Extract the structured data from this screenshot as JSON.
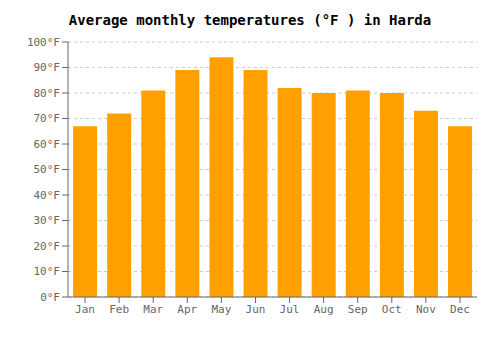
{
  "chart_data": {
    "type": "bar",
    "title": "Average monthly temperatures (°F ) in Harda",
    "categories": [
      "Jan",
      "Feb",
      "Mar",
      "Apr",
      "May",
      "Jun",
      "Jul",
      "Aug",
      "Sep",
      "Oct",
      "Nov",
      "Dec"
    ],
    "values": [
      67,
      72,
      81,
      89,
      94,
      89,
      82,
      80,
      81,
      80,
      73,
      67
    ],
    "color": "#FFA000",
    "ylim": [
      0,
      100
    ],
    "yticks": [
      {
        "value": 0,
        "label": "0°F"
      },
      {
        "value": 10,
        "label": "10°F"
      },
      {
        "value": 20,
        "label": "20°F"
      },
      {
        "value": 30,
        "label": "30°F"
      },
      {
        "value": 40,
        "label": "40°F"
      },
      {
        "value": 50,
        "label": "50°F"
      },
      {
        "value": 60,
        "label": "60°F"
      },
      {
        "value": 70,
        "label": "70°F"
      },
      {
        "value": 80,
        "label": "80°F"
      },
      {
        "value": 90,
        "label": "90°F"
      },
      {
        "value": 100,
        "label": "100°F"
      }
    ],
    "grid": true
  }
}
